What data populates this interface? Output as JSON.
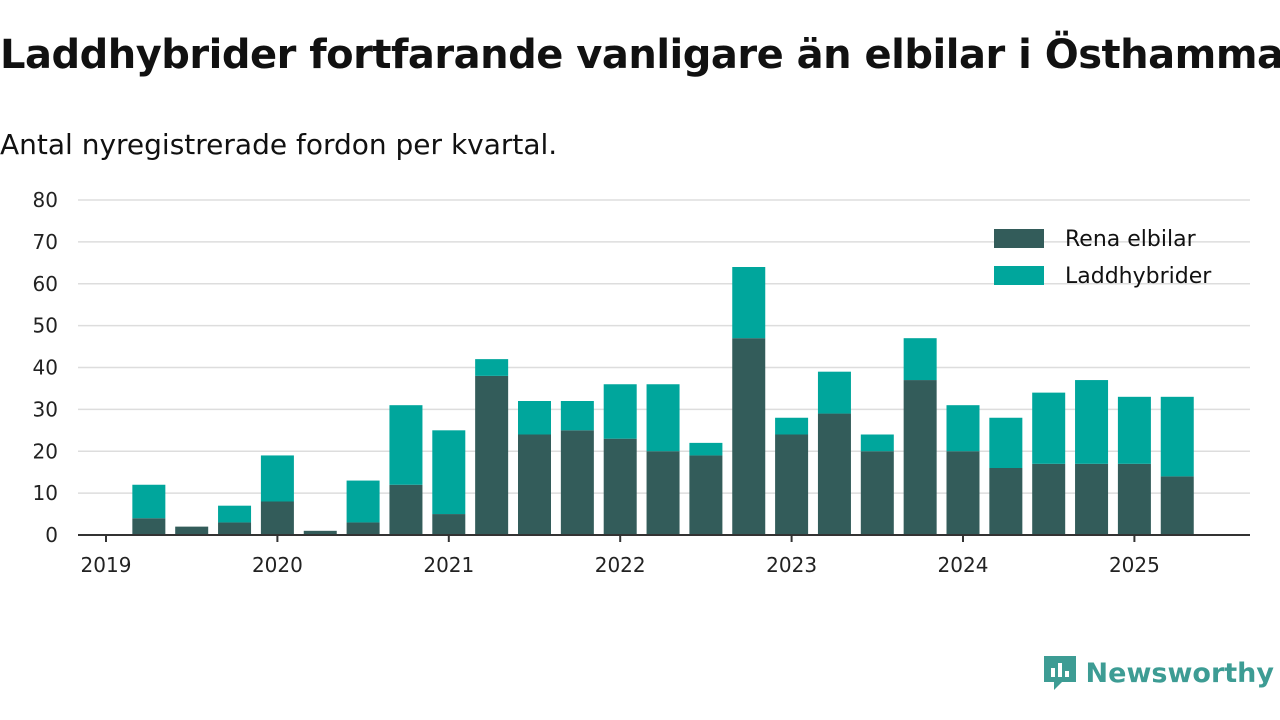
{
  "title": "Laddhybrider fortfarande vanligare än elbilar i Östhammar",
  "subtitle": "Antal nyregistrerade fordon per kvartal.",
  "brand": {
    "name": "Newsworthy",
    "color": "#3d9c94",
    "icon": "newsworthy-logo-icon"
  },
  "chart_data": {
    "type": "bar",
    "stacked": true,
    "categories": [
      "2019 Q1",
      "2019 Q2",
      "2019 Q3",
      "2019 Q4",
      "2020 Q1",
      "2020 Q2",
      "2020 Q3",
      "2020 Q4",
      "2021 Q1",
      "2021 Q2",
      "2021 Q3",
      "2021 Q4",
      "2022 Q1",
      "2022 Q2",
      "2022 Q3",
      "2022 Q4",
      "2023 Q1",
      "2023 Q2",
      "2023 Q3",
      "2023 Q4",
      "2024 Q1",
      "2024 Q2",
      "2024 Q3",
      "2024 Q4",
      "2025 Q1",
      "2025 Q2"
    ],
    "series": [
      {
        "name": "Rena elbilar",
        "color": "#335c5a",
        "values": [
          0,
          4,
          2,
          3,
          8,
          1,
          3,
          12,
          5,
          38,
          24,
          25,
          23,
          20,
          19,
          47,
          24,
          29,
          20,
          37,
          20,
          16,
          17,
          17,
          17,
          14
        ]
      },
      {
        "name": "Laddhybrider",
        "color": "#00a69c",
        "values": [
          0,
          8,
          0,
          4,
          11,
          0,
          10,
          19,
          20,
          4,
          8,
          7,
          13,
          16,
          3,
          17,
          4,
          10,
          4,
          10,
          11,
          12,
          17,
          20,
          16,
          19
        ]
      }
    ],
    "x_tick_labels": [
      "2019",
      "2020",
      "2021",
      "2022",
      "2023",
      "2024",
      "2025"
    ],
    "y_ticks": [
      0,
      10,
      20,
      30,
      40,
      50,
      60,
      70,
      80
    ],
    "ylim": [
      0,
      80
    ],
    "xlabel": "",
    "ylabel": "",
    "grid": "horizontal",
    "legend_position": "top-right"
  }
}
